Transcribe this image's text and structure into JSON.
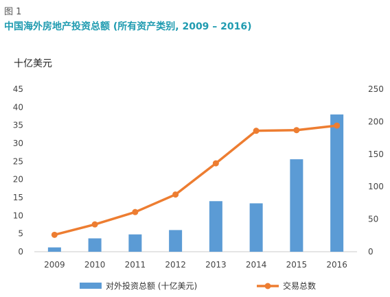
{
  "figure_label": "图 1",
  "title": "中国海外房地产投资总额 (所有资产类别, 2009 – 2016)",
  "unit_label": "十亿美元",
  "chart_data": {
    "type": "bar",
    "categories": [
      "2009",
      "2010",
      "2011",
      "2012",
      "2013",
      "2014",
      "2015",
      "2016"
    ],
    "series": [
      {
        "name": "对外投资总额 (十亿美元)",
        "type": "bar",
        "axis": "left",
        "color": "#5b9bd5",
        "values": [
          1.2,
          3.7,
          4.8,
          6.0,
          14.0,
          13.4,
          25.6,
          38.0
        ]
      },
      {
        "name": "交易总数",
        "type": "line",
        "axis": "right",
        "color": "#ed7d31",
        "values": [
          26,
          42,
          61,
          88,
          136,
          186,
          187,
          194
        ]
      }
    ],
    "y_left": {
      "ylim": [
        0,
        45
      ],
      "ticks": [
        "0",
        "5",
        "10",
        "15",
        "20",
        "25",
        "30",
        "35",
        "40",
        "45"
      ]
    },
    "y_right": {
      "ylim": [
        0,
        250
      ],
      "ticks": [
        "0",
        "50",
        "100",
        "150",
        "200",
        "250"
      ]
    },
    "grid": false,
    "legend_position": "bottom"
  }
}
